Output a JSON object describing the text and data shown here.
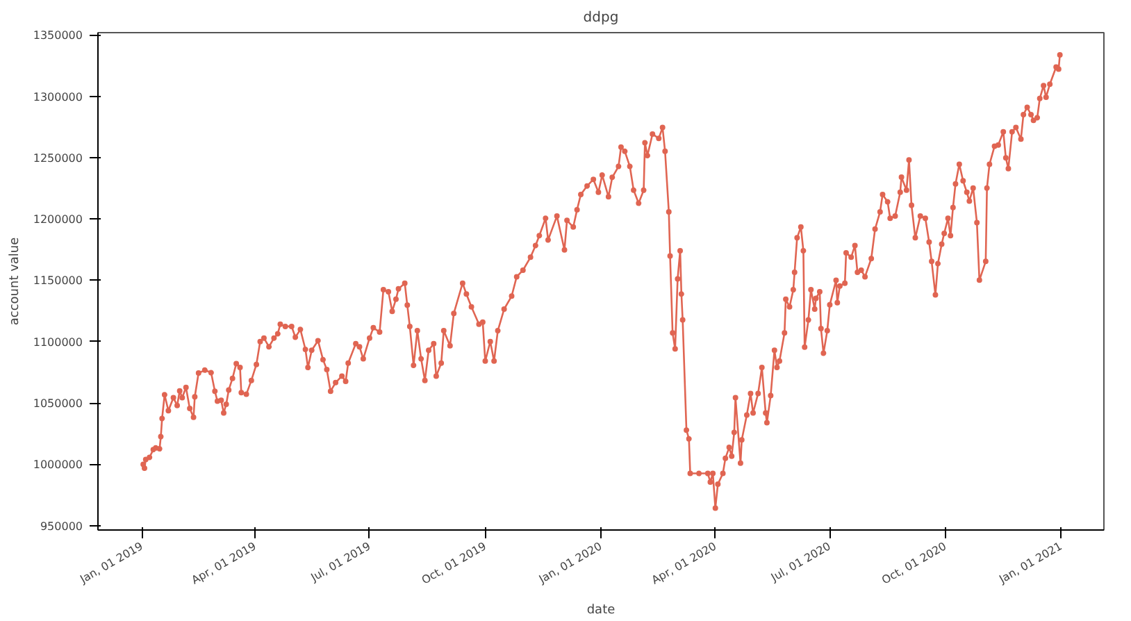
{
  "chart_data": {
    "type": "line",
    "title": "ddpg",
    "xlabel": "date",
    "ylabel": "account value",
    "x": [
      "2019-01-02",
      "2019-01-03",
      "2019-01-04",
      "2019-01-07",
      "2019-01-10",
      "2019-01-12",
      "2019-01-15",
      "2019-01-16",
      "2019-01-17",
      "2019-01-19",
      "2019-01-22",
      "2019-01-26",
      "2019-01-29",
      "2019-01-31",
      "2019-02-02",
      "2019-02-05",
      "2019-02-08",
      "2019-02-11",
      "2019-02-12",
      "2019-02-15",
      "2019-02-20",
      "2019-02-25",
      "2019-02-28",
      "2019-03-02",
      "2019-03-05",
      "2019-03-07",
      "2019-03-09",
      "2019-03-11",
      "2019-03-14",
      "2019-03-17",
      "2019-03-20",
      "2019-03-21",
      "2019-03-25",
      "2019-03-29",
      "2019-04-02",
      "2019-04-05",
      "2019-04-08",
      "2019-04-12",
      "2019-04-16",
      "2019-04-19",
      "2019-04-21",
      "2019-04-25",
      "2019-04-30",
      "2019-05-03",
      "2019-05-07",
      "2019-05-11",
      "2019-05-13",
      "2019-05-16",
      "2019-05-21",
      "2019-05-25",
      "2019-05-28",
      "2019-05-31",
      "2019-06-04",
      "2019-06-09",
      "2019-06-12",
      "2019-06-14",
      "2019-06-20",
      "2019-06-23",
      "2019-06-26",
      "2019-07-01",
      "2019-07-04",
      "2019-07-09",
      "2019-07-12",
      "2019-07-16",
      "2019-07-19",
      "2019-07-22",
      "2019-07-24",
      "2019-07-29",
      "2019-07-31",
      "2019-08-02",
      "2019-08-05",
      "2019-08-08",
      "2019-08-11",
      "2019-08-14",
      "2019-08-17",
      "2019-08-21",
      "2019-08-23",
      "2019-08-27",
      "2019-08-29",
      "2019-09-03",
      "2019-09-06",
      "2019-09-13",
      "2019-09-16",
      "2019-09-20",
      "2019-09-26",
      "2019-09-29",
      "2019-10-01",
      "2019-10-05",
      "2019-10-08",
      "2019-10-11",
      "2019-10-16",
      "2019-10-22",
      "2019-10-26",
      "2019-10-31",
      "2019-11-06",
      "2019-11-10",
      "2019-11-13",
      "2019-11-18",
      "2019-11-20",
      "2019-11-27",
      "2019-12-03",
      "2019-12-05",
      "2019-12-10",
      "2019-12-13",
      "2019-12-16",
      "2019-12-21",
      "2019-12-26",
      "2019-12-30",
      "2020-01-02",
      "2020-01-07",
      "2020-01-10",
      "2020-01-15",
      "2020-01-17",
      "2020-01-20",
      "2020-01-24",
      "2020-01-27",
      "2020-01-31",
      "2020-02-04",
      "2020-02-05",
      "2020-02-07",
      "2020-02-11",
      "2020-02-16",
      "2020-02-19",
      "2020-02-21",
      "2020-02-24",
      "2020-02-25",
      "2020-02-27",
      "2020-02-29",
      "2020-03-02",
      "2020-03-04",
      "2020-03-05",
      "2020-03-06",
      "2020-03-09",
      "2020-03-11",
      "2020-03-12",
      "2020-03-19",
      "2020-03-26",
      "2020-03-28",
      "2020-03-30",
      "2020-04-01",
      "2020-04-03",
      "2020-04-07",
      "2020-04-09",
      "2020-04-12",
      "2020-04-14",
      "2020-04-16",
      "2020-04-17",
      "2020-04-21",
      "2020-04-22",
      "2020-04-26",
      "2020-04-29",
      "2020-05-01",
      "2020-05-05",
      "2020-05-08",
      "2020-05-11",
      "2020-05-12",
      "2020-05-15",
      "2020-05-18",
      "2020-05-20",
      "2020-05-22",
      "2020-05-26",
      "2020-05-27",
      "2020-05-30",
      "2020-06-02",
      "2020-06-03",
      "2020-06-05",
      "2020-06-08",
      "2020-06-10",
      "2020-06-11",
      "2020-06-14",
      "2020-06-16",
      "2020-06-19",
      "2020-06-20",
      "2020-06-23",
      "2020-06-24",
      "2020-06-26",
      "2020-06-29",
      "2020-07-01",
      "2020-07-06",
      "2020-07-07",
      "2020-07-09",
      "2020-07-13",
      "2020-07-14",
      "2020-07-18",
      "2020-07-21",
      "2020-07-23",
      "2020-07-26",
      "2020-07-29",
      "2020-08-03",
      "2020-08-06",
      "2020-08-10",
      "2020-08-12",
      "2020-08-16",
      "2020-08-18",
      "2020-08-22",
      "2020-08-26",
      "2020-08-27",
      "2020-08-31",
      "2020-09-02",
      "2020-09-04",
      "2020-09-07",
      "2020-09-11",
      "2020-09-15",
      "2020-09-18",
      "2020-09-20",
      "2020-09-23",
      "2020-09-25",
      "2020-09-28",
      "2020-09-30",
      "2020-10-03",
      "2020-10-05",
      "2020-10-07",
      "2020-10-09",
      "2020-10-12",
      "2020-10-15",
      "2020-10-18",
      "2020-10-20",
      "2020-10-23",
      "2020-10-26",
      "2020-10-28",
      "2020-11-02",
      "2020-11-03",
      "2020-11-05",
      "2020-11-09",
      "2020-11-12",
      "2020-11-16",
      "2020-11-18",
      "2020-11-20",
      "2020-11-23",
      "2020-11-26",
      "2020-11-30",
      "2020-12-02",
      "2020-12-05",
      "2020-12-08",
      "2020-12-10",
      "2020-12-13",
      "2020-12-15",
      "2020-12-18",
      "2020-12-20",
      "2020-12-23",
      "2020-12-28",
      "2020-12-30",
      "2020-12-31"
    ],
    "series": [
      {
        "color": "#e06552",
        "values": [
          1000000,
          996900,
          1003900,
          1005700,
          1012000,
          1013400,
          1012700,
          1022600,
          1037400,
          1056700,
          1043700,
          1054300,
          1048000,
          1059900,
          1054300,
          1062700,
          1045500,
          1038400,
          1055000,
          1074400,
          1076800,
          1074700,
          1059600,
          1051500,
          1052200,
          1041900,
          1049000,
          1060600,
          1070100,
          1082100,
          1078900,
          1058500,
          1057100,
          1068400,
          1081400,
          1100100,
          1102900,
          1095800,
          1102900,
          1106400,
          1114200,
          1112400,
          1112400,
          1103600,
          1109900,
          1093700,
          1078900,
          1093000,
          1100800,
          1085300,
          1077200,
          1059600,
          1066600,
          1071900,
          1067700,
          1082500,
          1098300,
          1095800,
          1086000,
          1102900,
          1111300,
          1107800,
          1142300,
          1140600,
          1124700,
          1134600,
          1143000,
          1147600,
          1129700,
          1112400,
          1080700,
          1108900,
          1086000,
          1068400,
          1093000,
          1098300,
          1071900,
          1082500,
          1108900,
          1096600,
          1123000,
          1147600,
          1138800,
          1128300,
          1114200,
          1115900,
          1084200,
          1100100,
          1084200,
          1108900,
          1126500,
          1137100,
          1152900,
          1158200,
          1168800,
          1178300,
          1186400,
          1200500,
          1182900,
          1202300,
          1174800,
          1198800,
          1193400,
          1207500,
          1219900,
          1226900,
          1232200,
          1221700,
          1235700,
          1218100,
          1233900,
          1242800,
          1258600,
          1255100,
          1242800,
          1223400,
          1212800,
          1223400,
          1262100,
          1251600,
          1269200,
          1265600,
          1274500,
          1255100,
          1205800,
          1169800,
          1107100,
          1094100,
          1151200,
          1174100,
          1138800,
          1117700,
          1027900,
          1020800,
          992600,
          992600,
          992600,
          985600,
          992600,
          964400,
          983800,
          992600,
          1005000,
          1013800,
          1006700,
          1026100,
          1054300,
          1001000,
          1020000,
          1040200,
          1057800,
          1041900,
          1057800,
          1078900,
          1041900,
          1034000,
          1056000,
          1093000,
          1078900,
          1084200,
          1107100,
          1134600,
          1128300,
          1142300,
          1156500,
          1184600,
          1193400,
          1174100,
          1095500,
          1117700,
          1142300,
          1126500,
          1135300,
          1140600,
          1110600,
          1090600,
          1108900,
          1130000,
          1150000,
          1131800,
          1145300,
          1147600,
          1172300,
          1168800,
          1178300,
          1156500,
          1158200,
          1152900,
          1167700,
          1191700,
          1205800,
          1219900,
          1213900,
          1200500,
          1202300,
          1221700,
          1234000,
          1223400,
          1248000,
          1211100,
          1184600,
          1202300,
          1200500,
          1181200,
          1165400,
          1138100,
          1163600,
          1179500,
          1188200,
          1200500,
          1186400,
          1209300,
          1228600,
          1244500,
          1231100,
          1221700,
          1214600,
          1225200,
          1197000,
          1150100,
          1165400,
          1225200,
          1244500,
          1259200,
          1260300,
          1271000,
          1249800,
          1241000,
          1271000,
          1274500,
          1265000,
          1285000,
          1291000,
          1285000,
          1280400,
          1282500,
          1298100,
          1308700,
          1299200,
          1309800,
          1323800,
          1322100,
          1333700
        ]
      }
    ],
    "xlim": [
      "2018-11-27",
      "2021-02-04"
    ],
    "xticks": [
      {
        "value": "2019-01-01",
        "label": "Jan, 01 2019"
      },
      {
        "value": "2019-04-01",
        "label": "Apr, 01 2019"
      },
      {
        "value": "2019-07-01",
        "label": "Jul, 01 2019"
      },
      {
        "value": "2019-10-01",
        "label": "Oct, 01 2019"
      },
      {
        "value": "2020-01-01",
        "label": "Jan, 01 2020"
      },
      {
        "value": "2020-04-01",
        "label": "Apr, 01 2020"
      },
      {
        "value": "2020-07-01",
        "label": "Jul, 01 2020"
      },
      {
        "value": "2020-10-01",
        "label": "Oct, 01 2020"
      },
      {
        "value": "2021-01-01",
        "label": "Jan, 01 2021"
      }
    ],
    "ylim": [
      946500,
      1351800
    ],
    "yticks": [
      950000,
      1000000,
      1050000,
      1100000,
      1150000,
      1200000,
      1250000,
      1300000,
      1350000
    ],
    "marker": "circle",
    "line_style": "solid",
    "grid": false
  }
}
